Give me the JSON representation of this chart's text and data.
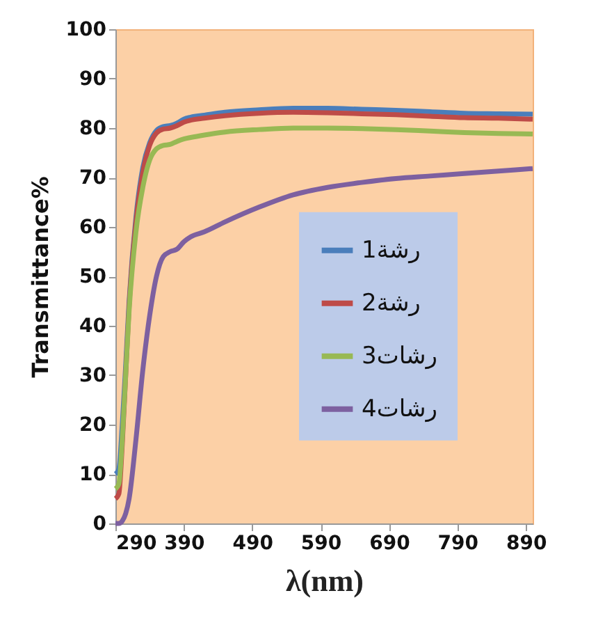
{
  "chart_data": {
    "type": "line",
    "xlabel": "λ(nm)",
    "ylabel": "Transmittance%",
    "x": [
      290,
      295,
      300,
      305,
      310,
      320,
      330,
      340,
      350,
      360,
      370,
      380,
      390,
      400,
      420,
      450,
      500,
      550,
      600,
      650,
      700,
      750,
      800,
      850,
      900
    ],
    "series": [
      {
        "name": "رشة1",
        "color": "#4a7ebb",
        "values": [
          10,
          11,
          20,
          32,
          45,
          62,
          72,
          77,
          79.5,
          80.3,
          80.5,
          81,
          81.8,
          82.2,
          82.6,
          83.2,
          83.7,
          84,
          84,
          83.8,
          83.6,
          83.3,
          83,
          82.9,
          82.8
        ]
      },
      {
        "name": "رشة2",
        "color": "#be4b48",
        "values": [
          5,
          6,
          16,
          30,
          44,
          61,
          71,
          76.5,
          79,
          79.8,
          80,
          80.5,
          81.2,
          81.6,
          82,
          82.5,
          83,
          83.2,
          83.1,
          82.9,
          82.7,
          82.4,
          82.1,
          82,
          81.8
        ]
      },
      {
        "name": "رشات3",
        "color": "#98b954",
        "values": [
          7,
          8,
          17,
          30,
          43,
          59,
          68,
          73.5,
          75.8,
          76.5,
          76.7,
          77.3,
          77.8,
          78.1,
          78.6,
          79.2,
          79.7,
          80,
          80,
          79.9,
          79.7,
          79.4,
          79.1,
          78.9,
          78.8
        ]
      },
      {
        "name": "رشات4",
        "color": "#7d60a0",
        "values": [
          0,
          0,
          0.5,
          2,
          5,
          17,
          31,
          42,
          50,
          54,
          55,
          55.5,
          57,
          58,
          59,
          61,
          64,
          66.5,
          68,
          69,
          69.8,
          70.3,
          70.8,
          71.3,
          71.8
        ]
      }
    ],
    "xlim": [
      290,
      900
    ],
    "xticks": [
      290,
      390,
      490,
      590,
      690,
      790,
      890
    ],
    "ylim": [
      0,
      100
    ],
    "yticks": [
      0,
      10,
      20,
      30,
      40,
      50,
      60,
      70,
      80,
      90,
      100
    ],
    "grid": false,
    "legend": "right",
    "marker": "none",
    "line_style": "solid"
  }
}
